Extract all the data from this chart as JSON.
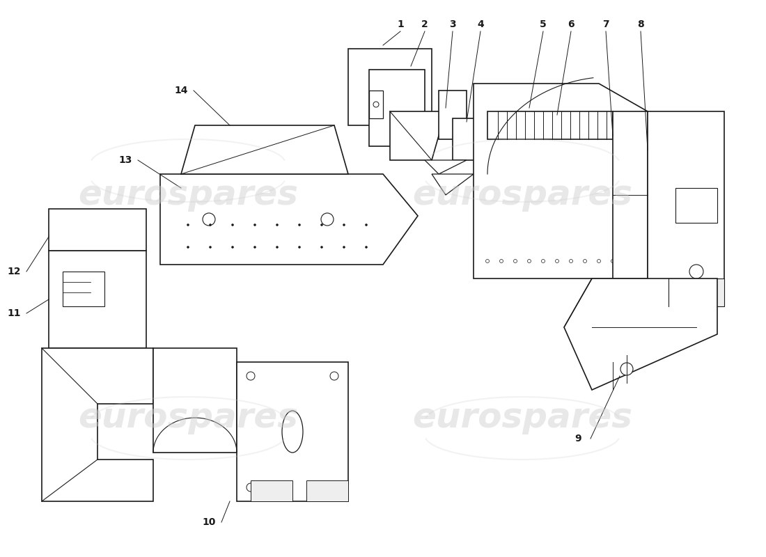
{
  "background_color": "#ffffff",
  "watermark_color": "#cccccc",
  "line_color": "#1a1a1a",
  "watermark_font_size": 36,
  "fig_width": 11.0,
  "fig_height": 8.0,
  "xlim": [
    0,
    110
  ],
  "ylim": [
    0,
    80
  ]
}
